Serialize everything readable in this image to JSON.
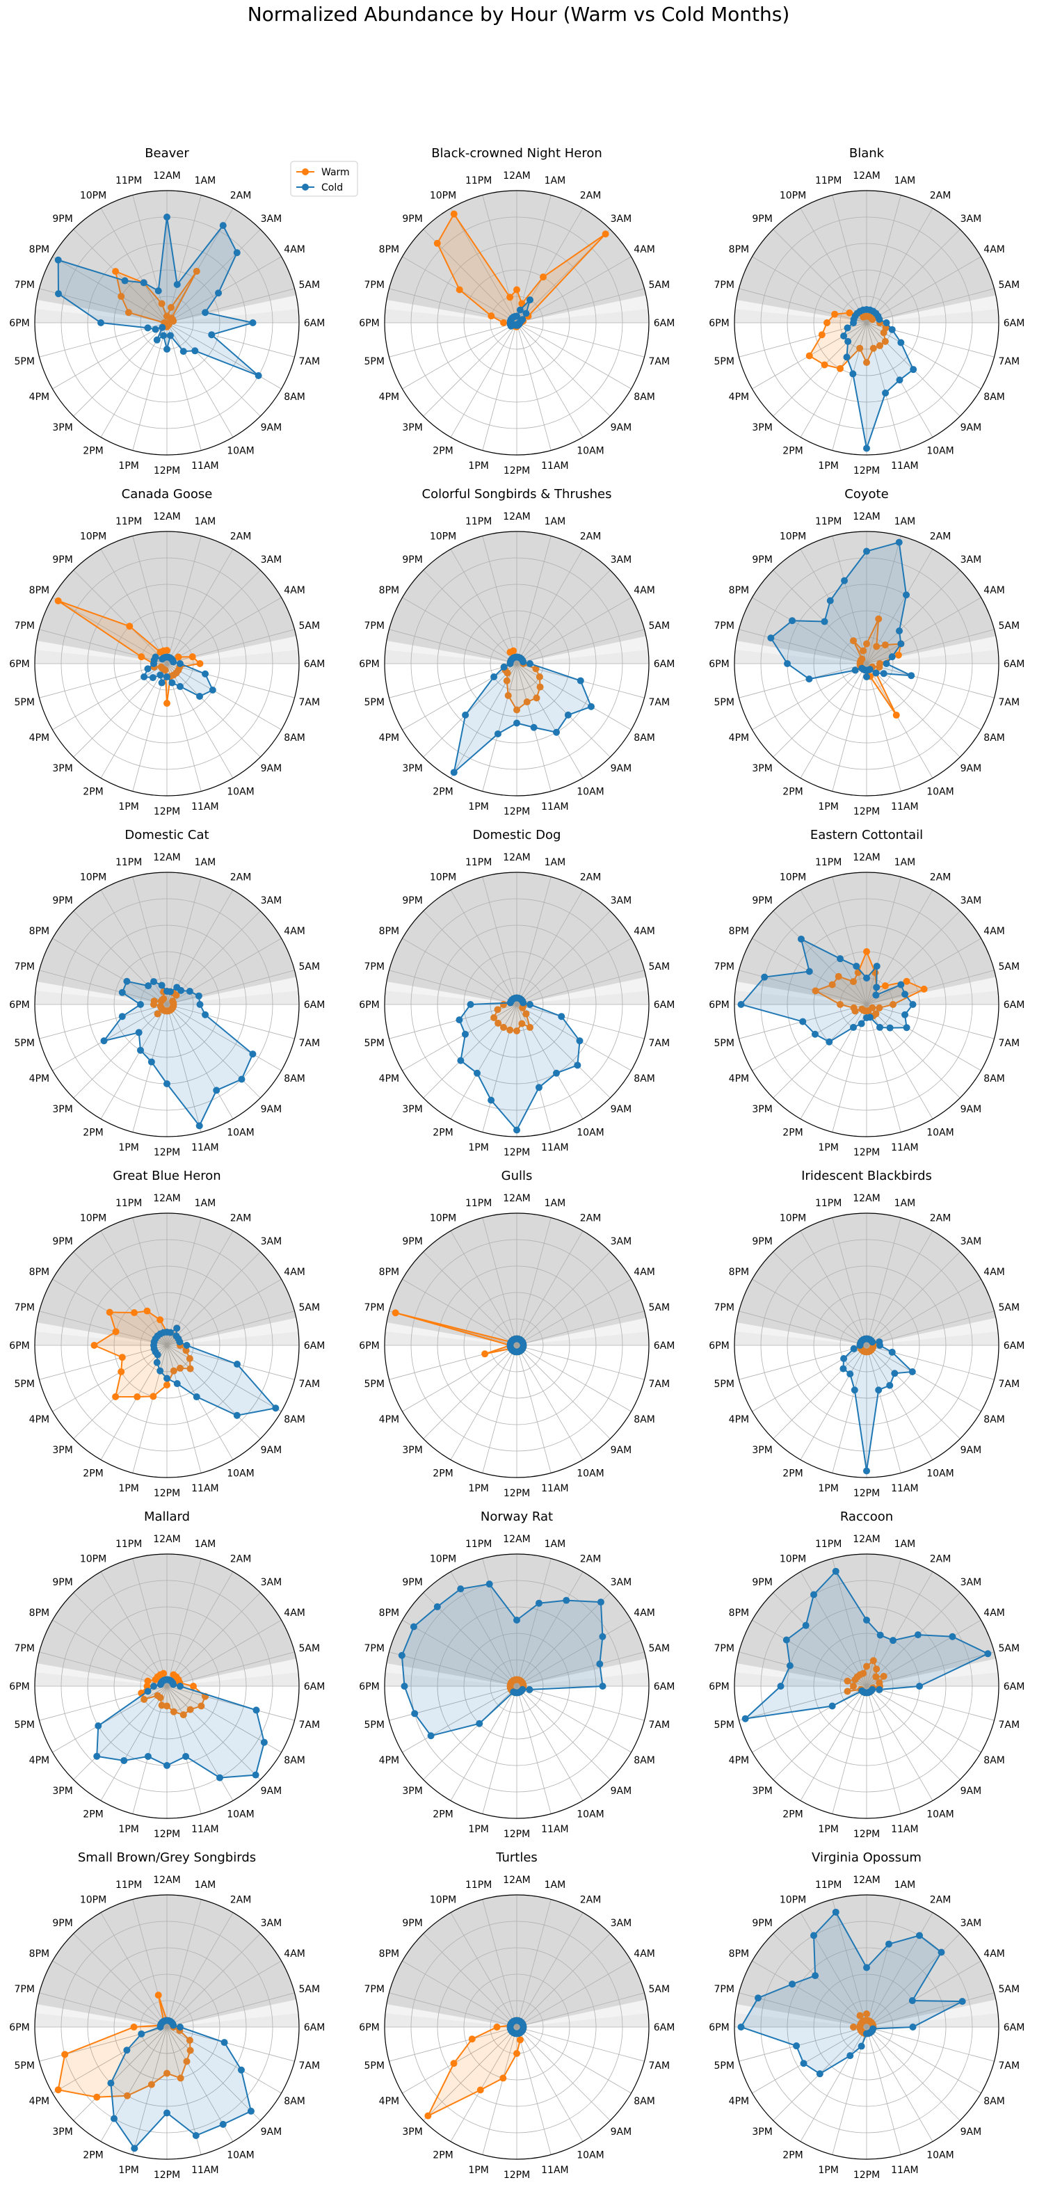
{
  "figure": {
    "title": "Normalized Abundance by Hour (Warm vs Cold Months)"
  },
  "chart_data": {
    "type": "radar",
    "hour_labels": [
      "12AM",
      "1AM",
      "2AM",
      "3AM",
      "4AM",
      "5AM",
      "6AM",
      "7AM",
      "8AM",
      "9AM",
      "10AM",
      "11AM",
      "12PM",
      "1PM",
      "2PM",
      "3PM",
      "4PM",
      "5PM",
      "6PM",
      "7PM",
      "8PM",
      "9PM",
      "10PM",
      "11PM"
    ],
    "legend": {
      "location": "upper-right of first panel",
      "entries": [
        {
          "name": "Warm",
          "color": "#ff7f0e"
        },
        {
          "name": "Cold",
          "color": "#1f77b4"
        }
      ]
    },
    "series_colors": {
      "warm": "#ff7f0e",
      "cold": "#1f77b4"
    },
    "radial_range": [
      0,
      1
    ],
    "angular_direction": "clockwise, 12AM at top",
    "background": "grey shaded night sectors (dark) and twilight sectors (lighter)",
    "panels": [
      {
        "name": "Beaver",
        "warm": [
          0.05,
          0.12,
          0.45,
          0.05,
          0.05,
          0.05,
          0.02,
          0.01,
          0.01,
          0.02,
          0.02,
          0.02,
          0.03,
          0.02,
          0.01,
          0.01,
          0.02,
          0.02,
          0.02,
          0.3,
          0.4,
          0.55,
          0.35,
          0.15
        ],
        "cold": [
          0.8,
          0.3,
          0.85,
          0.75,
          0.45,
          0.3,
          0.65,
          0.35,
          0.8,
          0.3,
          0.25,
          0.1,
          0.2,
          0.1,
          0.15,
          0.05,
          0.1,
          0.15,
          0.5,
          0.85,
          0.95,
          0.45,
          0.35,
          0.25
        ]
      },
      {
        "name": "Black-crowned Night Heron",
        "warm": [
          0.25,
          0.15,
          0.4,
          0.95,
          0.1,
          0.05,
          0.03,
          0.02,
          0.02,
          0.02,
          0.02,
          0.02,
          0.03,
          0.03,
          0.03,
          0.03,
          0.03,
          0.05,
          0.1,
          0.2,
          0.5,
          0.85,
          0.95,
          0.2
        ],
        "cold": [
          0.05,
          0.1,
          0.2,
          0.1,
          0.05,
          0.03,
          0.02,
          0.02,
          0.02,
          0.02,
          0.02,
          0.02,
          0.02,
          0.02,
          0.02,
          0.02,
          0.05,
          0.05,
          0.05,
          0.05,
          0.05,
          0.05,
          0.05,
          0.05
        ]
      },
      {
        "name": "Blank",
        "warm": [
          0.05,
          0.05,
          0.05,
          0.05,
          0.05,
          0.1,
          0.1,
          0.15,
          0.15,
          0.2,
          0.2,
          0.2,
          0.3,
          0.2,
          0.4,
          0.45,
          0.5,
          0.35,
          0.3,
          0.25,
          0.15,
          0.1,
          0.05,
          0.05
        ],
        "cold": [
          0.1,
          0.1,
          0.1,
          0.1,
          0.1,
          0.1,
          0.15,
          0.2,
          0.3,
          0.5,
          0.5,
          0.55,
          0.95,
          0.4,
          0.3,
          0.2,
          0.2,
          0.15,
          0.1,
          0.1,
          0.1,
          0.1,
          0.1,
          0.1
        ]
      },
      {
        "name": "Canada Goose",
        "warm": [
          0.1,
          0.05,
          0.05,
          0.05,
          0.1,
          0.2,
          0.25,
          0.1,
          0.1,
          0.1,
          0.1,
          0.1,
          0.3,
          0.05,
          0.05,
          0.05,
          0.05,
          0.1,
          0.1,
          0.2,
          0.95,
          0.4,
          0.1,
          0.1
        ],
        "cold": [
          0.05,
          0.05,
          0.05,
          0.05,
          0.05,
          0.05,
          0.1,
          0.3,
          0.4,
          0.35,
          0.2,
          0.15,
          0.1,
          0.15,
          0.1,
          0.15,
          0.2,
          0.15,
          0.1,
          0.1,
          0.1,
          0.05,
          0.05,
          0.05
        ]
      },
      {
        "name": "Colorful Songbirds & Thrushes",
        "warm": [
          0.05,
          0.05,
          0.05,
          0.05,
          0.05,
          0.05,
          0.05,
          0.15,
          0.2,
          0.25,
          0.3,
          0.3,
          0.35,
          0.25,
          0.15,
          0.1,
          0.1,
          0.1,
          0.05,
          0.05,
          0.05,
          0.05,
          0.1,
          0.1
        ],
        "cold": [
          0.05,
          0.05,
          0.05,
          0.05,
          0.05,
          0.05,
          0.1,
          0.5,
          0.65,
          0.55,
          0.6,
          0.5,
          0.45,
          0.55,
          0.95,
          0.55,
          0.2,
          0.1,
          0.05,
          0.05,
          0.05,
          0.05,
          0.05,
          0.05
        ]
      },
      {
        "name": "Coyote",
        "warm": [
          0.15,
          0.35,
          0.15,
          0.2,
          0.3,
          0.25,
          0.1,
          0.1,
          0.05,
          0.1,
          0.45,
          0.1,
          0.05,
          0.05,
          0.05,
          0.05,
          0.05,
          0.05,
          0.05,
          0.05,
          0.05,
          0.05,
          0.2,
          0.1
        ],
        "cold": [
          0.85,
          0.95,
          0.6,
          0.35,
          0.3,
          0.2,
          0.15,
          0.35,
          0.15,
          0.1,
          0.05,
          0.05,
          0.1,
          0.05,
          0.05,
          0.05,
          0.1,
          0.45,
          0.6,
          0.75,
          0.65,
          0.45,
          0.55,
          0.65
        ]
      },
      {
        "name": "Domestic Cat",
        "warm": [
          0.1,
          0.1,
          0.1,
          0.1,
          0.05,
          0.05,
          0.05,
          0.05,
          0.05,
          0.05,
          0.05,
          0.05,
          0.05,
          0.05,
          0.05,
          0.1,
          0.05,
          0.05,
          0.1,
          0.1,
          0.05,
          0.05,
          0.05,
          0.1
        ],
        "cold": [
          0.1,
          0.1,
          0.15,
          0.15,
          0.2,
          0.25,
          0.25,
          0.3,
          0.75,
          0.8,
          0.75,
          0.95,
          0.6,
          0.45,
          0.4,
          0.3,
          0.55,
          0.35,
          0.2,
          0.35,
          0.35,
          0.2,
          0.2,
          0.15
        ]
      },
      {
        "name": "Domestic Dog",
        "warm": [
          0.05,
          0.05,
          0.05,
          0.05,
          0.05,
          0.05,
          0.05,
          0.05,
          0.05,
          0.1,
          0.2,
          0.15,
          0.2,
          0.2,
          0.2,
          0.2,
          0.2,
          0.15,
          0.1,
          0.05,
          0.05,
          0.05,
          0.05,
          0.05
        ],
        "cold": [
          0.05,
          0.05,
          0.05,
          0.05,
          0.05,
          0.05,
          0.1,
          0.35,
          0.55,
          0.65,
          0.6,
          0.65,
          0.95,
          0.75,
          0.6,
          0.6,
          0.45,
          0.45,
          0.35,
          0.05,
          0.05,
          0.05,
          0.05,
          0.05
        ]
      },
      {
        "name": "Eastern Cottontail",
        "warm": [
          0.4,
          0.25,
          0.15,
          0.2,
          0.35,
          0.45,
          0.2,
          0.1,
          0.05,
          0.1,
          0.1,
          0.05,
          0.05,
          0.05,
          0.05,
          0.05,
          0.1,
          0.1,
          0.2,
          0.4,
          0.3,
          0.3,
          0.2,
          0.25
        ],
        "cold": [
          0.2,
          0.3,
          0.15,
          0.1,
          0.3,
          0.3,
          0.35,
          0.3,
          0.35,
          0.25,
          0.2,
          0.1,
          0.1,
          0.15,
          0.2,
          0.4,
          0.45,
          0.5,
          0.95,
          0.8,
          0.5,
          0.7,
          0.4,
          0.3
        ]
      },
      {
        "name": "Great Blue Heron",
        "warm": [
          0.1,
          0.1,
          0.15,
          0.1,
          0.1,
          0.1,
          0.1,
          0.15,
          0.2,
          0.25,
          0.2,
          0.2,
          0.3,
          0.4,
          0.45,
          0.55,
          0.4,
          0.35,
          0.55,
          0.4,
          0.5,
          0.35,
          0.3,
          0.2
        ],
        "cold": [
          0.1,
          0.1,
          0.15,
          0.1,
          0.1,
          0.1,
          0.15,
          0.55,
          0.95,
          0.75,
          0.45,
          0.3,
          0.25,
          0.2,
          0.15,
          0.1,
          0.1,
          0.1,
          0.1,
          0.1,
          0.1,
          0.1,
          0.1,
          0.1
        ]
      },
      {
        "name": "Gulls",
        "warm": [
          0.05,
          0.05,
          0.05,
          0.05,
          0.05,
          0.05,
          0.05,
          0.05,
          0.05,
          0.05,
          0.05,
          0.05,
          0.05,
          0.05,
          0.05,
          0.05,
          0.05,
          0.25,
          0.05,
          0.95,
          0.05,
          0.05,
          0.05,
          0.05
        ],
        "cold": [
          0.05,
          0.05,
          0.05,
          0.05,
          0.05,
          0.05,
          0.05,
          0.05,
          0.05,
          0.05,
          0.05,
          0.05,
          0.05,
          0.05,
          0.05,
          0.05,
          0.05,
          0.05,
          0.05,
          0.05,
          0.05,
          0.05,
          0.05,
          0.05
        ]
      },
      {
        "name": "Iridescent Blackbirds",
        "warm": [
          0.05,
          0.05,
          0.05,
          0.05,
          0.05,
          0.05,
          0.05,
          0.05,
          0.05,
          0.05,
          0.05,
          0.05,
          0.05,
          0.05,
          0.05,
          0.05,
          0.05,
          0.05,
          0.05,
          0.05,
          0.05,
          0.05,
          0.05,
          0.05
        ],
        "cold": [
          0.05,
          0.05,
          0.05,
          0.05,
          0.05,
          0.1,
          0.1,
          0.2,
          0.4,
          0.3,
          0.35,
          0.35,
          0.95,
          0.35,
          0.25,
          0.25,
          0.2,
          0.1,
          0.05,
          0.05,
          0.05,
          0.05,
          0.05,
          0.05
        ]
      },
      {
        "name": "Mallard",
        "warm": [
          0.05,
          0.05,
          0.1,
          0.1,
          0.1,
          0.1,
          0.2,
          0.3,
          0.3,
          0.25,
          0.25,
          0.2,
          0.15,
          0.15,
          0.1,
          0.1,
          0.2,
          0.2,
          0.15,
          0.15,
          0.1,
          0.1,
          0.1,
          0.1
        ],
        "cold": [
          0.05,
          0.05,
          0.05,
          0.05,
          0.05,
          0.05,
          0.1,
          0.7,
          0.85,
          0.95,
          0.8,
          0.55,
          0.6,
          0.55,
          0.65,
          0.75,
          0.6,
          0.15,
          0.1,
          0.05,
          0.05,
          0.05,
          0.05,
          0.05
        ]
      },
      {
        "name": "Norway Rat",
        "warm": [
          0.05,
          0.05,
          0.05,
          0.05,
          0.05,
          0.05,
          0.05,
          0.05,
          0.05,
          0.05,
          0.05,
          0.05,
          0.05,
          0.05,
          0.05,
          0.05,
          0.05,
          0.05,
          0.05,
          0.05,
          0.05,
          0.05,
          0.05,
          0.05
        ],
        "cold": [
          0.5,
          0.65,
          0.75,
          0.9,
          0.75,
          0.65,
          0.65,
          0.1,
          0.05,
          0.05,
          0.05,
          0.05,
          0.05,
          0.05,
          0.05,
          0.4,
          0.75,
          0.8,
          0.85,
          0.9,
          0.9,
          0.85,
          0.85,
          0.8
        ]
      },
      {
        "name": "Raccoon",
        "warm": [
          0.15,
          0.2,
          0.15,
          0.1,
          0.15,
          0.1,
          0.1,
          0.05,
          0.05,
          0.05,
          0.05,
          0.05,
          0.05,
          0.05,
          0.05,
          0.05,
          0.05,
          0.15,
          0.1,
          0.15,
          0.1,
          0.1,
          0.1,
          0.1
        ],
        "cold": [
          0.5,
          0.4,
          0.4,
          0.55,
          0.75,
          0.95,
          0.4,
          0.1,
          0.05,
          0.05,
          0.05,
          0.05,
          0.05,
          0.05,
          0.05,
          0.05,
          0.3,
          0.95,
          0.65,
          0.6,
          0.7,
          0.65,
          0.8,
          0.9
        ]
      },
      {
        "name": "Small Brown/Grey Songbirds",
        "warm": [
          0.05,
          0.05,
          0.05,
          0.05,
          0.05,
          0.05,
          0.05,
          0.1,
          0.2,
          0.25,
          0.3,
          0.4,
          0.35,
          0.45,
          0.6,
          0.75,
          0.95,
          0.8,
          0.25,
          0.05,
          0.05,
          0.05,
          0.05,
          0.25
        ],
        "cold": [
          0.05,
          0.05,
          0.05,
          0.05,
          0.05,
          0.05,
          0.1,
          0.45,
          0.65,
          0.9,
          0.85,
          0.85,
          0.65,
          0.95,
          0.8,
          0.6,
          0.35,
          0.2,
          0.05,
          0.05,
          0.05,
          0.05,
          0.05,
          0.05
        ]
      },
      {
        "name": "Turtles",
        "warm": [
          0.05,
          0.05,
          0.05,
          0.05,
          0.05,
          0.05,
          0.05,
          0.05,
          0.05,
          0.05,
          0.05,
          0.1,
          0.2,
          0.4,
          0.55,
          0.95,
          0.55,
          0.35,
          0.15,
          0.05,
          0.05,
          0.05,
          0.05,
          0.05
        ],
        "cold": [
          0.05,
          0.05,
          0.05,
          0.05,
          0.05,
          0.05,
          0.05,
          0.05,
          0.05,
          0.05,
          0.05,
          0.05,
          0.05,
          0.05,
          0.05,
          0.05,
          0.05,
          0.05,
          0.05,
          0.05,
          0.05,
          0.05,
          0.05,
          0.05
        ]
      },
      {
        "name": "Virginia Opossum",
        "warm": [
          0.1,
          0.05,
          0.05,
          0.05,
          0.05,
          0.05,
          0.05,
          0.05,
          0.05,
          0.05,
          0.05,
          0.05,
          0.05,
          0.05,
          0.05,
          0.05,
          0.05,
          0.05,
          0.1,
          0.05,
          0.05,
          0.05,
          0.1,
          0.05
        ],
        "cold": [
          0.45,
          0.65,
          0.8,
          0.8,
          0.4,
          0.75,
          0.35,
          0.05,
          0.05,
          0.05,
          0.05,
          0.05,
          0.05,
          0.15,
          0.25,
          0.5,
          0.55,
          0.55,
          0.95,
          0.85,
          0.65,
          0.55,
          0.8,
          0.9
        ]
      }
    ]
  }
}
